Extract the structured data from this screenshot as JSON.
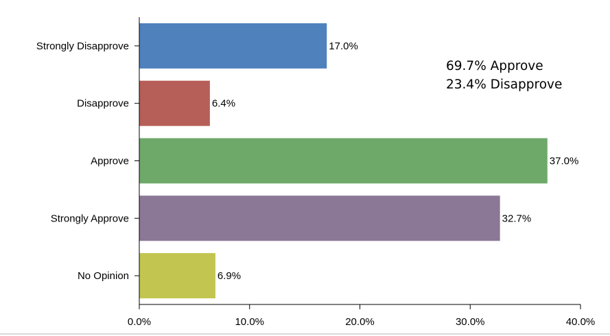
{
  "chart_data": {
    "type": "bar",
    "orientation": "horizontal",
    "categories": [
      "Strongly Disapprove",
      "Disapprove",
      "Approve",
      "Strongly Approve",
      "No Opinion"
    ],
    "values": [
      17.0,
      6.4,
      37.0,
      32.7,
      6.9
    ],
    "value_labels": [
      "17.0%",
      "6.4%",
      "37.0%",
      "32.7%",
      "6.9%"
    ],
    "colors": [
      "#4f81bd",
      "#b65f58",
      "#6ea96a",
      "#8a7896",
      "#c2c650"
    ],
    "xlim": [
      0,
      40
    ],
    "xticks": [
      0,
      10,
      20,
      30,
      40
    ],
    "xtick_labels": [
      "0.0%",
      "10.0%",
      "20.0%",
      "30.0%",
      "40.0%"
    ],
    "grid": false,
    "title": "",
    "xlabel": "",
    "ylabel": "",
    "annotations": [
      "69.7% Approve",
      "23.4% Disapprove"
    ]
  }
}
